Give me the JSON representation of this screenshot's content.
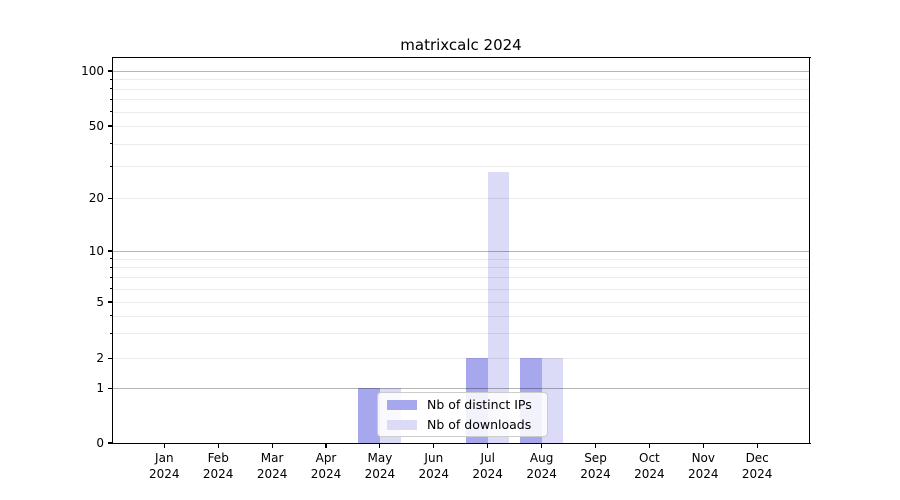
{
  "chart_data": {
    "type": "bar",
    "title": "matrixcalc 2024",
    "categories": [
      "Jan 2024",
      "Feb 2024",
      "Mar 2024",
      "Apr 2024",
      "May 2024",
      "Jun 2024",
      "Jul 2024",
      "Aug 2024",
      "Sep 2024",
      "Oct 2024",
      "Nov 2024",
      "Dec 2024"
    ],
    "series": [
      {
        "name": "Nb of distinct IPs",
        "color": "#a7a7ee",
        "values": [
          0,
          0,
          0,
          0,
          1,
          0,
          2,
          2,
          0,
          0,
          0,
          0
        ]
      },
      {
        "name": "Nb of downloads",
        "color": "#dbdbf8",
        "values": [
          0,
          0,
          0,
          0,
          1,
          0,
          28,
          2,
          0,
          0,
          0,
          0
        ]
      }
    ],
    "y_axis": {
      "scale": "log-like (linear segment below 1)",
      "tick_values": [
        0,
        1,
        2,
        5,
        10,
        20,
        50,
        100
      ],
      "tick_labels": [
        "0",
        "1",
        "2",
        "5",
        "10",
        "20",
        "50",
        "100"
      ],
      "range": [
        0,
        118
      ]
    },
    "x_axis": {
      "tick_label_format": "Mon YYYY on two lines"
    },
    "legend": {
      "position": "inside-bottom-center",
      "entries": [
        "Nb of distinct IPs",
        "Nb of downloads"
      ]
    },
    "grid": {
      "orientation": "horizontal",
      "major_at": [
        1,
        10,
        100
      ],
      "minor_at": [
        2,
        3,
        4,
        5,
        6,
        7,
        8,
        9,
        20,
        30,
        40,
        50,
        60,
        70,
        80,
        90
      ]
    }
  },
  "colors": {
    "background": "#ffffff",
    "axis": "#000000",
    "grid_major": "#b5b5b5",
    "grid_minor": "#ebebeb",
    "legend_border": "#cccccc"
  }
}
